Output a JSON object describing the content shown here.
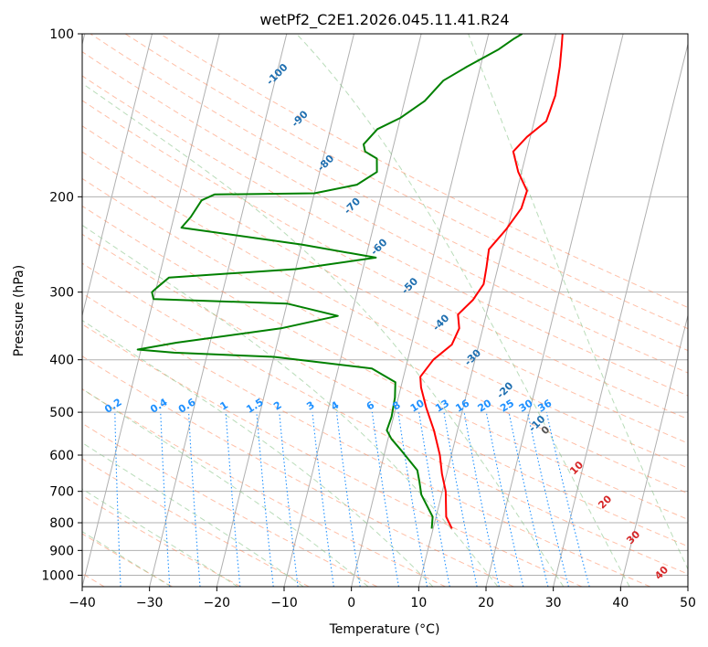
{
  "chart_data": {
    "type": "line",
    "title": "wetPf2_C2E1.2026.045.11.41.R24",
    "xlabel": "Temperature (°C)",
    "ylabel": "Pressure (hPa)",
    "xlim": [
      -40,
      50
    ],
    "ylim": [
      1050,
      100
    ],
    "y_scale": "log",
    "x_ticks": [
      -40,
      -30,
      -20,
      -10,
      0,
      10,
      20,
      30,
      40,
      50
    ],
    "y_ticks": [
      100,
      200,
      300,
      400,
      500,
      600,
      700,
      800,
      900,
      1000
    ],
    "grid": true,
    "colors": {
      "temperature": "#ff0000",
      "dewpoint": "#008000",
      "isotherm": "#b0b0b0",
      "dry_adiabat": "#ff7f50",
      "moist_adiabat": "#7fbf7f",
      "mixing_ratio": "#1e90ff",
      "dry_label": "#1f6fb0",
      "moist_label": "#d62728"
    },
    "series": [
      {
        "name": "Temperature",
        "color": "#ff0000",
        "points": [
          [
            12.8,
            820
          ],
          [
            11.5,
            780
          ],
          [
            10.5,
            700
          ],
          [
            9.3,
            650
          ],
          [
            8.3,
            600
          ],
          [
            6.5,
            540
          ],
          [
            4.5,
            490
          ],
          [
            3.0,
            450
          ],
          [
            2.5,
            430
          ],
          [
            3.8,
            400
          ],
          [
            6.0,
            375
          ],
          [
            6.5,
            350
          ],
          [
            5.8,
            330
          ],
          [
            7.5,
            310
          ],
          [
            8.5,
            290
          ],
          [
            8.3,
            270
          ],
          [
            8.0,
            250
          ],
          [
            9.8,
            230
          ],
          [
            11.3,
            210
          ],
          [
            11.5,
            195
          ],
          [
            9.5,
            180
          ],
          [
            8.0,
            165
          ],
          [
            9.5,
            155
          ],
          [
            11.8,
            145
          ],
          [
            12.2,
            130
          ],
          [
            11.8,
            115
          ],
          [
            11.3,
            105
          ],
          [
            11.0,
            100
          ]
        ]
      },
      {
        "name": "Dewpoint",
        "color": "#008000",
        "points": [
          [
            9.8,
            820
          ],
          [
            9.5,
            780
          ],
          [
            7.0,
            710
          ],
          [
            6.2,
            670
          ],
          [
            5.5,
            640
          ],
          [
            2.5,
            590
          ],
          [
            0.5,
            560
          ],
          [
            -0.5,
            540
          ],
          [
            -0.3,
            510
          ],
          [
            -0.5,
            470
          ],
          [
            -1.0,
            440
          ],
          [
            -5.0,
            415
          ],
          [
            -20.0,
            395
          ],
          [
            -35.0,
            388
          ],
          [
            -40.5,
            383
          ],
          [
            -35.0,
            372
          ],
          [
            -20.0,
            350
          ],
          [
            -12.0,
            332
          ],
          [
            -20.0,
            315
          ],
          [
            -40.0,
            309
          ],
          [
            -40.5,
            300
          ],
          [
            -40.0,
            295
          ],
          [
            -38.5,
            282
          ],
          [
            -20.0,
            272
          ],
          [
            -8.5,
            259
          ],
          [
            -20.0,
            245
          ],
          [
            -38.5,
            228
          ],
          [
            -37.5,
            218
          ],
          [
            -36.5,
            203
          ],
          [
            -34.8,
            198
          ],
          [
            -20.0,
            197
          ],
          [
            -14.0,
            190
          ],
          [
            -11.5,
            180
          ],
          [
            -12.0,
            170
          ],
          [
            -14.0,
            165
          ],
          [
            -14.5,
            160
          ],
          [
            -13.0,
            150
          ],
          [
            -10.0,
            143
          ],
          [
            -7.0,
            133
          ],
          [
            -5.0,
            122
          ],
          [
            -2.0,
            115
          ],
          [
            2.0,
            107
          ],
          [
            4.0,
            102
          ],
          [
            5.0,
            100
          ]
        ]
      }
    ],
    "isotherms_c": [
      -150,
      -140,
      -130,
      -120,
      -110,
      -100,
      -90,
      -80,
      -70,
      -60,
      -50,
      -40,
      -30,
      -20,
      -10,
      0,
      10,
      20,
      30,
      40,
      50
    ],
    "dry_adiabats_c": [
      -100,
      -90,
      -80,
      -70,
      -60,
      -50,
      -40,
      -30,
      -20,
      -10,
      0,
      10,
      20,
      30,
      40,
      50,
      60,
      70,
      80,
      90,
      100,
      110,
      120,
      130,
      140,
      150,
      160
    ],
    "moist_adiabats_c": [
      -30,
      -20,
      -10,
      0,
      10,
      20,
      30,
      40,
      50
    ],
    "mixing_ratios": [
      0.1,
      0.2,
      0.4,
      0.6,
      1,
      1.5,
      2,
      3,
      4,
      6,
      8,
      10,
      13,
      16,
      20,
      25,
      30,
      36
    ],
    "dry_adiabat_labels": [
      {
        "text": "-100",
        "t": -29.5,
        "p": 120
      },
      {
        "text": "-90",
        "t": -24.5,
        "p": 145
      },
      {
        "text": "-80",
        "t": -19.0,
        "p": 175
      },
      {
        "text": "-70",
        "t": -13.5,
        "p": 210
      },
      {
        "text": "-60",
        "t": -8.0,
        "p": 250
      },
      {
        "text": "-50",
        "t": -2.0,
        "p": 295
      },
      {
        "text": "-40",
        "t": 4.0,
        "p": 345
      },
      {
        "text": "-30",
        "t": 10.0,
        "p": 400
      },
      {
        "text": "-20",
        "t": 16.0,
        "p": 460
      },
      {
        "text": "-10",
        "t": 22.0,
        "p": 530
      }
    ],
    "moist_adiabat_labels": [
      {
        "text": "0",
        "t": 23.5,
        "p": 545
      },
      {
        "text": "10",
        "t": 29.5,
        "p": 640
      },
      {
        "text": "20",
        "t": 35.0,
        "p": 740
      },
      {
        "text": "30",
        "t": 40.5,
        "p": 860
      },
      {
        "text": "40",
        "t": 46.0,
        "p": 1000
      }
    ]
  }
}
